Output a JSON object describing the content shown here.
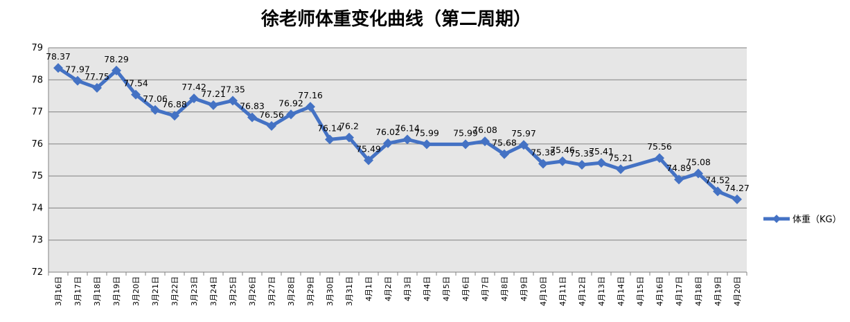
{
  "chart_data": {
    "type": "line",
    "title": "徐老师体重变化曲线（第二周期）",
    "xlabel": "",
    "ylabel": "",
    "ylim": [
      72,
      79
    ],
    "yticks": [
      72,
      73,
      74,
      75,
      76,
      77,
      78,
      79
    ],
    "grid": true,
    "legend_position": "right",
    "colors": {
      "series": "#4472C4",
      "plot_bg": "#E6E6E6",
      "grid": "#808080"
    },
    "categories": [
      "3月16日",
      "3月17日",
      "3月18日",
      "3月19日",
      "3月20日",
      "3月21日",
      "3月22日",
      "3月23日",
      "3月24日",
      "3月25日",
      "3月26日",
      "3月27日",
      "3月28日",
      "3月29日",
      "3月30日",
      "3月31日",
      "4月1日",
      "4月2日",
      "4月3日",
      "4月4日",
      "4月5日",
      "4月6日",
      "4月7日",
      "4月8日",
      "4月9日",
      "4月10日",
      "4月11日",
      "4月12日",
      "4月13日",
      "4月14日",
      "4月15日",
      "4月16日",
      "4月17日",
      "4月18日",
      "4月19日",
      "4月20日"
    ],
    "series": [
      {
        "name": "体重（KG）",
        "values": [
          78.37,
          77.97,
          77.75,
          78.29,
          77.54,
          77.06,
          76.88,
          77.42,
          77.21,
          77.35,
          76.83,
          76.56,
          76.92,
          77.16,
          76.14,
          76.2,
          75.49,
          76.02,
          76.14,
          75.99,
          null,
          75.99,
          76.08,
          75.68,
          75.97,
          75.38,
          75.46,
          75.35,
          75.41,
          75.21,
          null,
          75.56,
          74.89,
          75.08,
          74.52,
          74.27
        ]
      }
    ]
  }
}
